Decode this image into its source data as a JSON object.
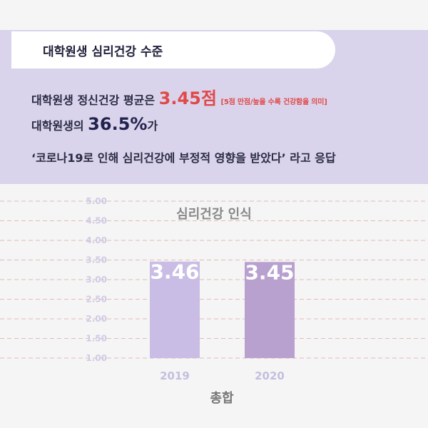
{
  "header": {
    "title": "대학원생 심리건강 수준"
  },
  "summary": {
    "line1_prefix": "대학원생 정신건강 평균은 ",
    "line1_value": "3.45점",
    "line1_note": "[5점 만점/높을 수록 건강함을 의미]",
    "line2_prefix": "대학원생의 ",
    "line2_value": "36.5%",
    "line2_suffix": "가",
    "line3": "‘코로나19로 인해 심리건강에 부정적 영향을 받았다’ 라고 응답"
  },
  "colors": {
    "header_bg": "#d9d4eb",
    "accent_red": "#e14949",
    "accent_navy": "#22224f",
    "bar_2019": "#c9bde6",
    "bar_2020": "#b8a1cf",
    "grid": "#e8b8b8"
  },
  "chart_data": {
    "type": "bar",
    "title": "심리건강 인식",
    "xlabel": "총합",
    "ylabel": "",
    "categories": [
      "2019",
      "2020"
    ],
    "values": [
      3.46,
      3.45
    ],
    "value_labels": [
      "3.46",
      "3.45"
    ],
    "ylim": [
      1.0,
      5.0
    ],
    "yticks": [
      "1.00",
      "1.50",
      "2.00",
      "2.50",
      "3.00",
      "3.50",
      "4.00",
      "4.50",
      "5.00"
    ],
    "grid": true,
    "legend": "none"
  }
}
